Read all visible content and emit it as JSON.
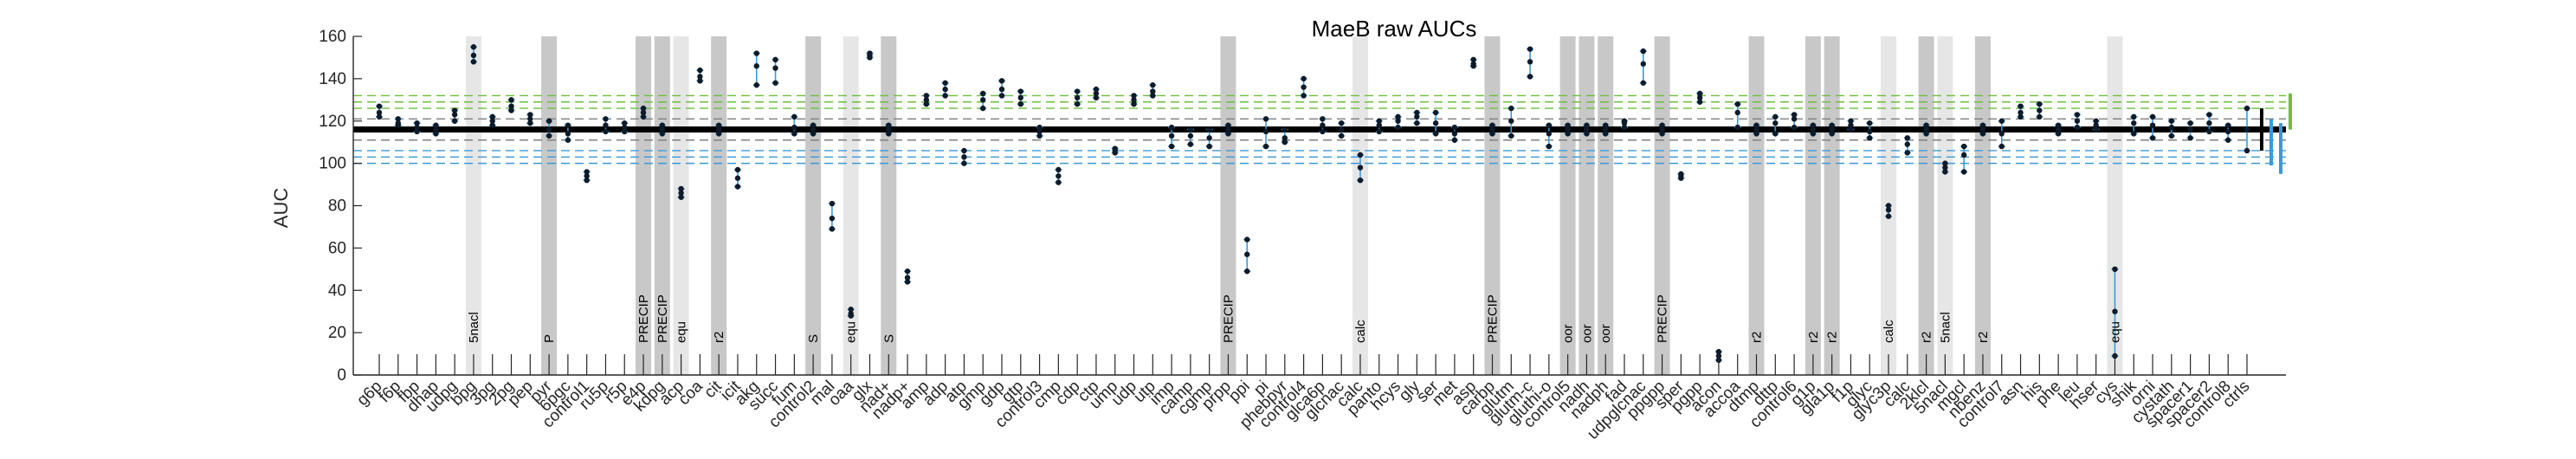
{
  "chart_data": {
    "type": "scatter",
    "title": "MaeB raw AUCs",
    "xlabel": "",
    "ylabel": "AUC",
    "ylim": [
      0,
      160
    ],
    "yticks": [
      0,
      20,
      40,
      60,
      80,
      100,
      120,
      140,
      160
    ],
    "grid": false,
    "reference_lines": {
      "mean": 116,
      "upper": [
        121,
        126,
        129,
        132
      ],
      "lower": [
        111,
        106,
        103,
        100
      ],
      "colors": {
        "mean": "#000000",
        "upper_dashed": [
          "#7f7f7f",
          "#6cbf3c",
          "#6cbf3c",
          "#6cbf3c"
        ],
        "lower_dashed": [
          "#7f7f7f",
          "#3a9ad9",
          "#3a9ad9",
          "#3a9ad9"
        ],
        "error": "#3a9ad9",
        "point": "#0d1b2a",
        "band_dark": "#c8c8c8",
        "band_light": "#e6e6e6"
      }
    },
    "categories": [
      {
        "label": "g6p",
        "values": [
          124,
          127,
          122
        ]
      },
      {
        "label": "f6p",
        "values": [
          119,
          121,
          118
        ]
      },
      {
        "label": "fbp",
        "values": [
          117,
          115,
          119
        ]
      },
      {
        "label": "dhap",
        "values": [
          116,
          118,
          114
        ]
      },
      {
        "label": "udpg",
        "values": [
          123,
          125,
          120
        ]
      },
      {
        "label": "bpg",
        "values": [
          151,
          155,
          148
        ],
        "band": "light",
        "annotation": "5nacl"
      },
      {
        "label": "3pg",
        "values": [
          120,
          122,
          118
        ]
      },
      {
        "label": "2pg",
        "values": [
          127,
          130,
          125
        ]
      },
      {
        "label": "pep",
        "values": [
          121,
          123,
          119
        ]
      },
      {
        "label": "pyr",
        "values": [
          116,
          120,
          113
        ],
        "band": "dark",
        "annotation": "P"
      },
      {
        "label": "6pgc",
        "values": [
          114,
          118,
          111
        ]
      },
      {
        "label": "control1",
        "values": [
          94,
          96,
          92
        ]
      },
      {
        "label": "ru5p",
        "values": [
          118,
          121,
          115
        ]
      },
      {
        "label": "r5p",
        "values": [
          117,
          119,
          115
        ]
      },
      {
        "label": "e4p",
        "values": [
          124,
          126,
          122
        ],
        "band": "dark",
        "annotation": "PRECIP"
      },
      {
        "label": "kdpg",
        "values": [
          116,
          118,
          114
        ],
        "band": "dark",
        "annotation": "PRECIP"
      },
      {
        "label": "acp",
        "values": [
          86,
          88,
          84
        ],
        "band": "light",
        "annotation": "equ"
      },
      {
        "label": "coa",
        "values": [
          141,
          144,
          139
        ]
      },
      {
        "label": "cit",
        "values": [
          116,
          118,
          114
        ],
        "band": "dark",
        "annotation": "r2"
      },
      {
        "label": "icit",
        "values": [
          93,
          97,
          89
        ]
      },
      {
        "label": "akg",
        "values": [
          146,
          152,
          137
        ]
      },
      {
        "label": "succ",
        "values": [
          145,
          149,
          138
        ]
      },
      {
        "label": "fum",
        "values": [
          117,
          122,
          114
        ]
      },
      {
        "label": "control2",
        "values": [
          116,
          118,
          114
        ],
        "band": "dark",
        "annotation": "S"
      },
      {
        "label": "mal",
        "values": [
          74,
          81,
          69
        ]
      },
      {
        "label": "oaa",
        "values": [
          29,
          31,
          28
        ],
        "band": "light",
        "annotation": "equ"
      },
      {
        "label": "glx",
        "values": [
          151,
          152,
          150
        ]
      },
      {
        "label": "nad+",
        "values": [
          116,
          118,
          114
        ],
        "band": "dark",
        "annotation": "S"
      },
      {
        "label": "nadp+",
        "values": [
          46,
          49,
          44
        ]
      },
      {
        "label": "amp",
        "values": [
          130,
          132,
          128
        ]
      },
      {
        "label": "adp",
        "values": [
          135,
          138,
          132
        ]
      },
      {
        "label": "atp",
        "values": [
          103,
          106,
          100
        ]
      },
      {
        "label": "gmp",
        "values": [
          130,
          133,
          126
        ]
      },
      {
        "label": "gdp",
        "values": [
          135,
          139,
          132
        ]
      },
      {
        "label": "gtp",
        "values": [
          131,
          134,
          128
        ]
      },
      {
        "label": "control3",
        "values": [
          115,
          117,
          113
        ]
      },
      {
        "label": "cmp",
        "values": [
          94,
          97,
          91
        ]
      },
      {
        "label": "cdp",
        "values": [
          131,
          134,
          128
        ]
      },
      {
        "label": "ctp",
        "values": [
          133,
          135,
          131
        ]
      },
      {
        "label": "ump",
        "values": [
          106,
          107,
          105
        ]
      },
      {
        "label": "udp",
        "values": [
          130,
          132,
          128
        ]
      },
      {
        "label": "utp",
        "values": [
          134,
          137,
          132
        ]
      },
      {
        "label": "imp",
        "values": [
          113,
          117,
          108
        ]
      },
      {
        "label": "camp",
        "values": [
          113,
          116,
          109
        ]
      },
      {
        "label": "cgmp",
        "values": [
          112,
          116,
          108
        ]
      },
      {
        "label": "prpp",
        "values": [
          116,
          118,
          114
        ],
        "band": "dark",
        "annotation": "PRECIP"
      },
      {
        "label": "ppi",
        "values": [
          57,
          64,
          49
        ]
      },
      {
        "label": "pi",
        "values": [
          115,
          121,
          108
        ]
      },
      {
        "label": "phebpyr",
        "values": [
          112,
          116,
          110
        ]
      },
      {
        "label": "control4",
        "values": [
          136,
          140,
          132
        ]
      },
      {
        "label": "glca6p",
        "values": [
          118,
          121,
          115
        ]
      },
      {
        "label": "glcnac",
        "values": [
          116,
          119,
          113
        ]
      },
      {
        "label": "calc",
        "values": [
          98,
          104,
          92
        ],
        "band": "light",
        "annotation": "calc"
      },
      {
        "label": "panto",
        "values": [
          118,
          120,
          115
        ]
      },
      {
        "label": "hcys",
        "values": [
          120,
          122,
          117
        ]
      },
      {
        "label": "gly",
        "values": [
          122,
          124,
          119
        ]
      },
      {
        "label": "ser",
        "values": [
          119,
          124,
          114
        ]
      },
      {
        "label": "met",
        "values": [
          114,
          117,
          111
        ]
      },
      {
        "label": "asp",
        "values": [
          147,
          149,
          146
        ]
      },
      {
        "label": "carbp",
        "values": [
          116,
          118,
          114
        ],
        "band": "dark",
        "annotation": "PRECIP"
      },
      {
        "label": "glutm",
        "values": [
          120,
          126,
          113
        ]
      },
      {
        "label": "glutm-c",
        "values": [
          148,
          154,
          141
        ]
      },
      {
        "label": "gluthi-o",
        "values": [
          114,
          118,
          108
        ]
      },
      {
        "label": "control5",
        "values": [
          116,
          118,
          114
        ],
        "band": "dark",
        "annotation": "oor"
      },
      {
        "label": "nadh",
        "values": [
          116,
          118,
          114
        ],
        "band": "dark",
        "annotation": "oor"
      },
      {
        "label": "nadph",
        "values": [
          116,
          118,
          114
        ],
        "band": "dark",
        "annotation": "oor"
      },
      {
        "label": "fad",
        "values": [
          119,
          120,
          117
        ]
      },
      {
        "label": "udpglcnac",
        "values": [
          147,
          153,
          138
        ]
      },
      {
        "label": "ppgpp",
        "values": [
          116,
          118,
          114
        ],
        "band": "dark",
        "annotation": "PRECIP"
      },
      {
        "label": "sper",
        "values": [
          94,
          95,
          93
        ]
      },
      {
        "label": "pgpp",
        "values": [
          131,
          133,
          129
        ]
      },
      {
        "label": "acon",
        "values": [
          9,
          11,
          7
        ]
      },
      {
        "label": "accoa",
        "values": [
          124,
          128,
          117
        ]
      },
      {
        "label": "dtmp",
        "values": [
          116,
          118,
          114
        ],
        "band": "dark",
        "annotation": "r2"
      },
      {
        "label": "dttp",
        "values": [
          119,
          122,
          114
        ]
      },
      {
        "label": "control6",
        "values": [
          121,
          123,
          117
        ]
      },
      {
        "label": "g1p",
        "values": [
          116,
          118,
          114
        ],
        "band": "dark",
        "annotation": "r2"
      },
      {
        "label": "gla1p",
        "values": [
          116,
          118,
          114
        ],
        "band": "dark",
        "annotation": "r2"
      },
      {
        "label": "f1p",
        "values": [
          118,
          120,
          116
        ]
      },
      {
        "label": "glyc",
        "values": [
          115,
          119,
          112
        ]
      },
      {
        "label": "glyc3p",
        "values": [
          78,
          80,
          75
        ],
        "band": "light",
        "annotation": "calc"
      },
      {
        "label": "calc",
        "values": [
          109,
          112,
          105
        ]
      },
      {
        "label": "2klcl",
        "values": [
          116,
          118,
          114
        ],
        "band": "dark",
        "annotation": "r2"
      },
      {
        "label": "5nacl",
        "values": [
          98,
          100,
          96
        ],
        "band": "light",
        "annotation": "5nacl"
      },
      {
        "label": "mgcl",
        "values": [
          104,
          108,
          96
        ]
      },
      {
        "label": "nbenz",
        "values": [
          116,
          118,
          114
        ],
        "band": "dark",
        "annotation": "r2"
      },
      {
        "label": "control7",
        "values": [
          114,
          120,
          108
        ]
      },
      {
        "label": "asn",
        "values": [
          124,
          127,
          122
        ]
      },
      {
        "label": "his",
        "values": [
          125,
          128,
          122
        ]
      },
      {
        "label": "phe",
        "values": [
          116,
          118,
          114
        ]
      },
      {
        "label": "leu",
        "values": [
          120,
          123,
          117
        ]
      },
      {
        "label": "hser",
        "values": [
          118,
          120,
          116
        ]
      },
      {
        "label": "cys",
        "values": [
          30,
          50,
          9
        ],
        "band": "light",
        "annotation": "equ"
      },
      {
        "label": "shik",
        "values": [
          119,
          122,
          114
        ]
      },
      {
        "label": "orni",
        "values": [
          118,
          122,
          112
        ]
      },
      {
        "label": "cystath",
        "values": [
          117,
          120,
          113
        ]
      },
      {
        "label": "spacer1",
        "values": [
          116,
          119,
          112
        ]
      },
      {
        "label": "spacer2",
        "values": [
          119,
          123,
          115
        ]
      },
      {
        "label": "control8",
        "values": [
          115,
          118,
          111
        ]
      },
      {
        "label": "ctrls",
        "values": [
          116,
          126,
          106
        ]
      }
    ],
    "control_whiskers": [
      {
        "color": "#000000",
        "range": [
          106,
          126
        ]
      },
      {
        "color": "#3a9ad9",
        "range": [
          99,
          121
        ]
      },
      {
        "color": "#3a9ad9",
        "range": [
          95,
          119
        ]
      },
      {
        "color": "#6cbf3c",
        "range": [
          116,
          133
        ]
      }
    ]
  }
}
